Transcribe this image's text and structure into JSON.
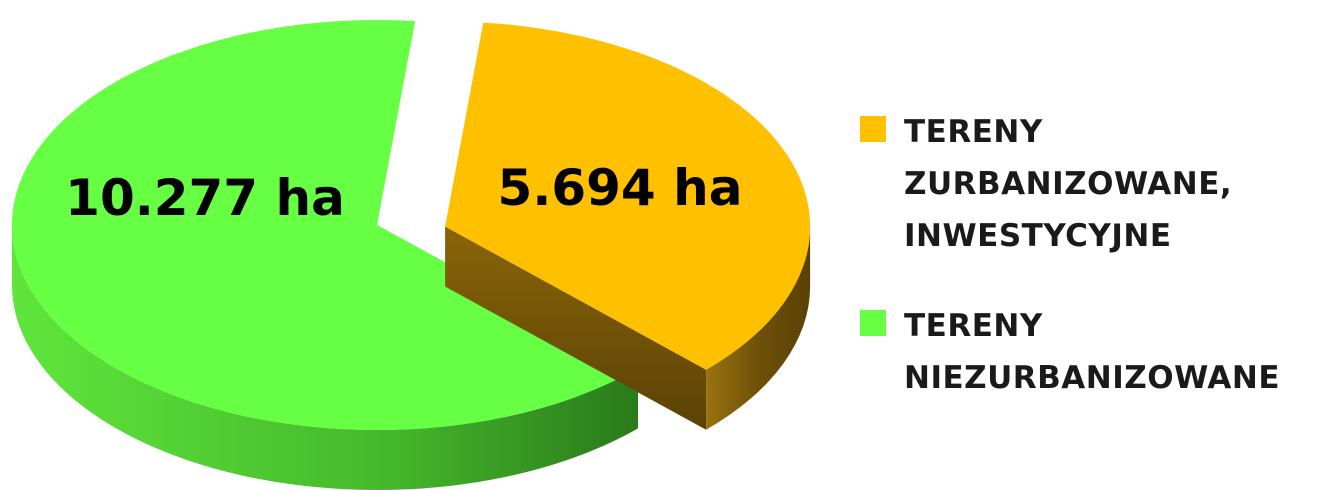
{
  "chart_data": {
    "type": "pie",
    "style": "3d-exploded",
    "slices": [
      {
        "label_lines": [
          "TERENY",
          "ZURBANIZOWANE,",
          "INWESTYCYJNE"
        ],
        "value": 5694,
        "data_label": "5.694 ha",
        "color_top": "#FFC000",
        "color_side": "#7A5A00"
      },
      {
        "label_lines": [
          "TERENY",
          "NIEZURBANIZOWANE"
        ],
        "value": 10277,
        "data_label": "10.277 ha",
        "color_top": "#66FF44",
        "color_side": "#2E8B1E"
      }
    ],
    "unit": "ha",
    "legend_position": "right"
  }
}
